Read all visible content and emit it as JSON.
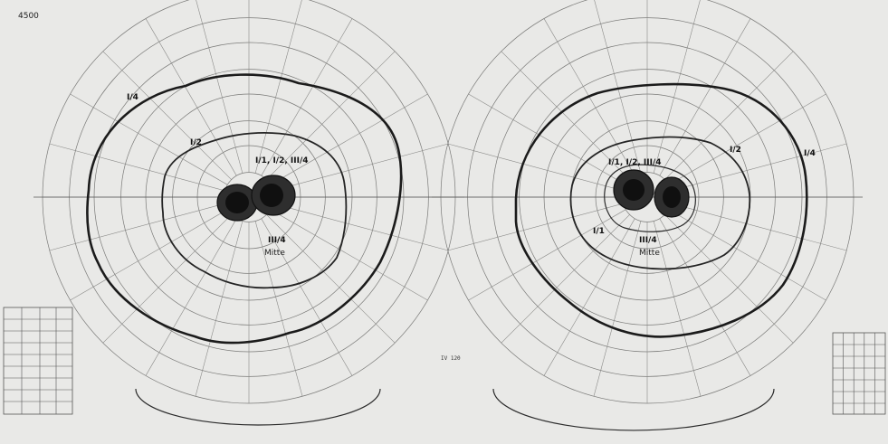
{
  "header": {
    "code": "4500"
  },
  "left_eye": {
    "isopter_labels": {
      "outer": "I/4",
      "middle": "I/2"
    },
    "scotoma_label_top": "I/1, I/2, III/4",
    "scotoma_label_bottom": "III/4",
    "scotoma_label_bottom_note": "Mitte"
  },
  "right_eye": {
    "isopter_labels": {
      "outer": "I/4",
      "middle": "I/2",
      "inner": "I/1"
    },
    "scotoma_label_top": "I/1, I/2, III/4",
    "scotoma_label_bottom": "III/4",
    "scotoma_label_bottom_note": "Mitte"
  },
  "footer": {
    "center_code": "IV 120"
  }
}
